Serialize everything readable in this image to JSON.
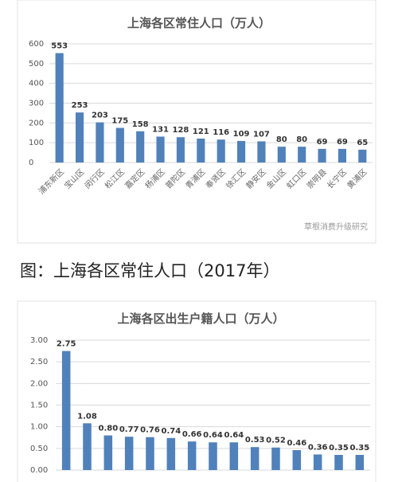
{
  "chart_data": [
    {
      "type": "bar",
      "title": "上海各区常住人口（万人）",
      "categories": [
        "浦东新区",
        "宝山区",
        "闵行区",
        "松江区",
        "嘉定区",
        "杨浦区",
        "普陀区",
        "青浦区",
        "奉贤区",
        "徐汇区",
        "静安区",
        "金山区",
        "虹口区",
        "崇明县",
        "长宁区",
        "黄浦区"
      ],
      "values": [
        553,
        253,
        203,
        175,
        158,
        131,
        128,
        121,
        116,
        109,
        107,
        80,
        80,
        69,
        69,
        65
      ],
      "color": "#4f81bd",
      "ylim": [
        0,
        600
      ],
      "yticks": [
        0,
        100,
        200,
        300,
        400,
        500,
        600
      ],
      "grid": true,
      "annotation": "草根消费升级研究"
    },
    {
      "type": "bar",
      "title": "上海各区出生户籍人口（万人）",
      "values": [
        2.75,
        1.08,
        0.8,
        0.77,
        0.76,
        0.74,
        0.66,
        0.64,
        0.64,
        0.53,
        0.52,
        0.46,
        0.36,
        0.35,
        0.35
      ],
      "value_labels": [
        "2.75",
        "1.08",
        "0.80",
        "0.77",
        "0.76",
        "0.74",
        "0.66",
        "0.64",
        "0.64",
        "0.53",
        "0.52",
        "0.46",
        "0.36",
        "0.35",
        "0.35"
      ],
      "color": "#4f81bd",
      "ylim": [
        0,
        3
      ],
      "grid": true,
      "yticks": [
        {
          "value": 0,
          "label": "0.00"
        },
        {
          "value": 0.5,
          "label": "0.50"
        },
        {
          "value": 1,
          "label": "1.00"
        },
        {
          "value": 1.5,
          "label": "1.50"
        },
        {
          "value": 2,
          "label": "2.00"
        },
        {
          "value": 2.5,
          "label": "2.50"
        },
        {
          "value": 3,
          "label": "3.00"
        }
      ]
    }
  ],
  "caption": "图：上海各区常住人口（2017年）"
}
